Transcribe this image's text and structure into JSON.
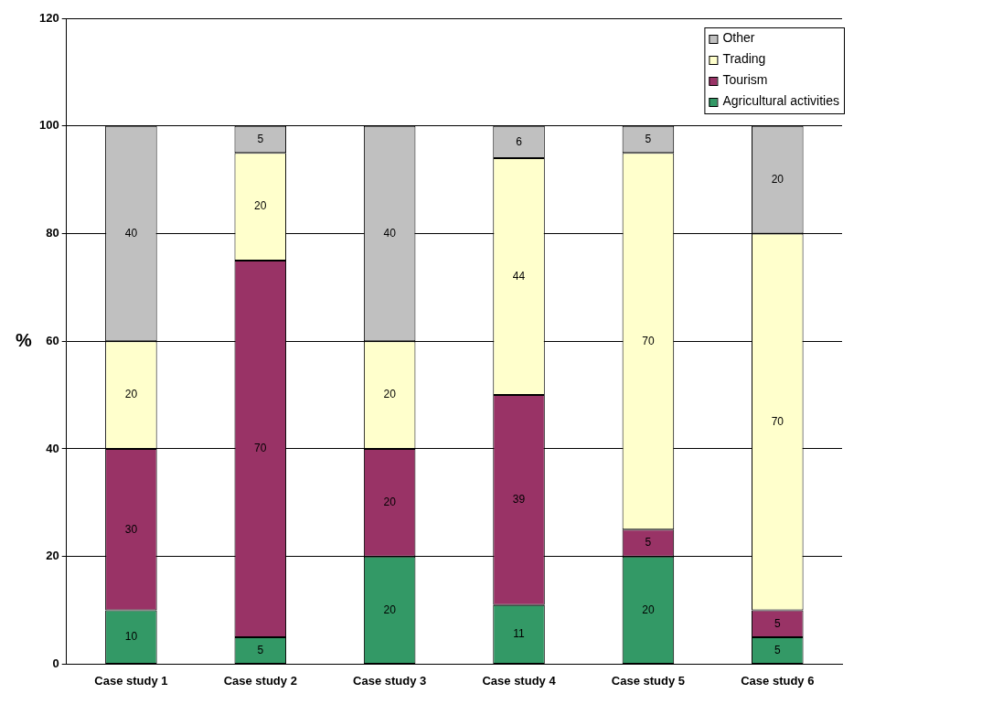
{
  "chart_data": {
    "type": "bar",
    "categories": [
      "Case study 1",
      "Case study 2",
      "Case study 3",
      "Case study 4",
      "Case study 5",
      "Case study 6"
    ],
    "y_label": "%",
    "series": [
      {
        "name": "Agricultural activities",
        "color": "#339966",
        "values": [
          10,
          5,
          20,
          11,
          20,
          5
        ]
      },
      {
        "name": "Tourism",
        "color": "#993366",
        "values": [
          30,
          70,
          20,
          39,
          5,
          5
        ]
      },
      {
        "name": "Trading",
        "color": "#ffffcc",
        "values": [
          20,
          20,
          20,
          44,
          70,
          70
        ]
      },
      {
        "name": "Other",
        "color": "#c0c0c0",
        "values": [
          40,
          5,
          40,
          6,
          5,
          20
        ]
      }
    ],
    "ylim": [
      0,
      120
    ],
    "yticks": [
      0,
      20,
      40,
      60,
      80,
      100,
      120
    ],
    "grid": true,
    "stacked": true,
    "data_labels": true,
    "legend": "upper right"
  }
}
